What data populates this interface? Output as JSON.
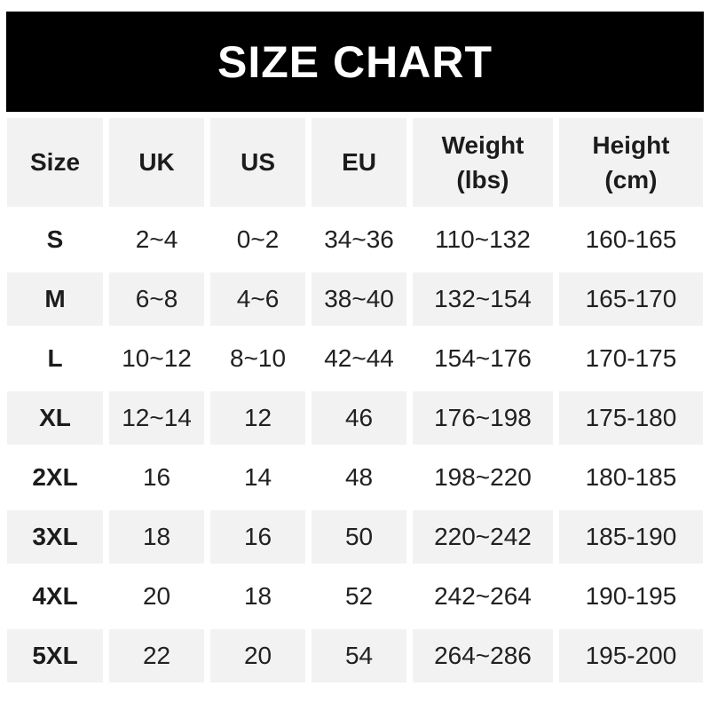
{
  "banner": {
    "title": "SIZE CHART"
  },
  "colors": {
    "banner_bg": "#000000",
    "banner_text": "#ffffff",
    "row_alt_bg": "#f2f2f2",
    "text": "#212121"
  },
  "table": {
    "columns": [
      {
        "label": "Size"
      },
      {
        "label": "UK"
      },
      {
        "label": "US"
      },
      {
        "label": "EU"
      },
      {
        "label": "Weight",
        "sublabel": "(lbs)"
      },
      {
        "label": "Height",
        "sublabel": "(cm)"
      }
    ],
    "rows": [
      {
        "size": "S",
        "uk": "2~4",
        "us": "0~2",
        "eu": "34~36",
        "weight": "110~132",
        "height": "160-165"
      },
      {
        "size": "M",
        "uk": "6~8",
        "us": "4~6",
        "eu": "38~40",
        "weight": "132~154",
        "height": "165-170"
      },
      {
        "size": "L",
        "uk": "10~12",
        "us": "8~10",
        "eu": "42~44",
        "weight": "154~176",
        "height": "170-175"
      },
      {
        "size": "XL",
        "uk": "12~14",
        "us": "12",
        "eu": "46",
        "weight": "176~198",
        "height": "175-180"
      },
      {
        "size": "2XL",
        "uk": "16",
        "us": "14",
        "eu": "48",
        "weight": "198~220",
        "height": "180-185"
      },
      {
        "size": "3XL",
        "uk": "18",
        "us": "16",
        "eu": "50",
        "weight": "220~242",
        "height": "185-190"
      },
      {
        "size": "4XL",
        "uk": "20",
        "us": "18",
        "eu": "52",
        "weight": "242~264",
        "height": "190-195"
      },
      {
        "size": "5XL",
        "uk": "22",
        "us": "20",
        "eu": "54",
        "weight": "264~286",
        "height": "195-200"
      }
    ]
  },
  "chart_data": {
    "type": "table",
    "title": "SIZE CHART",
    "columns": [
      "Size",
      "UK",
      "US",
      "EU",
      "Weight (lbs)",
      "Height (cm)"
    ],
    "rows": [
      [
        "S",
        "2~4",
        "0~2",
        "34~36",
        "110~132",
        "160-165"
      ],
      [
        "M",
        "6~8",
        "4~6",
        "38~40",
        "132~154",
        "165-170"
      ],
      [
        "L",
        "10~12",
        "8~10",
        "42~44",
        "154~176",
        "170-175"
      ],
      [
        "XL",
        "12~14",
        "12",
        "46",
        "176~198",
        "175-180"
      ],
      [
        "2XL",
        "16",
        "14",
        "48",
        "198~220",
        "180-185"
      ],
      [
        "3XL",
        "18",
        "16",
        "50",
        "220~242",
        "185-190"
      ],
      [
        "4XL",
        "20",
        "18",
        "52",
        "242~264",
        "190-195"
      ],
      [
        "5XL",
        "22",
        "20",
        "54",
        "264~286",
        "195-200"
      ]
    ],
    "layout": {
      "header_background": "#f2f2f2",
      "alternating_row_background": [
        "#ffffff",
        "#f2f2f2"
      ],
      "banner_background": "#000000",
      "gridlines": "white gutters between cells"
    }
  }
}
